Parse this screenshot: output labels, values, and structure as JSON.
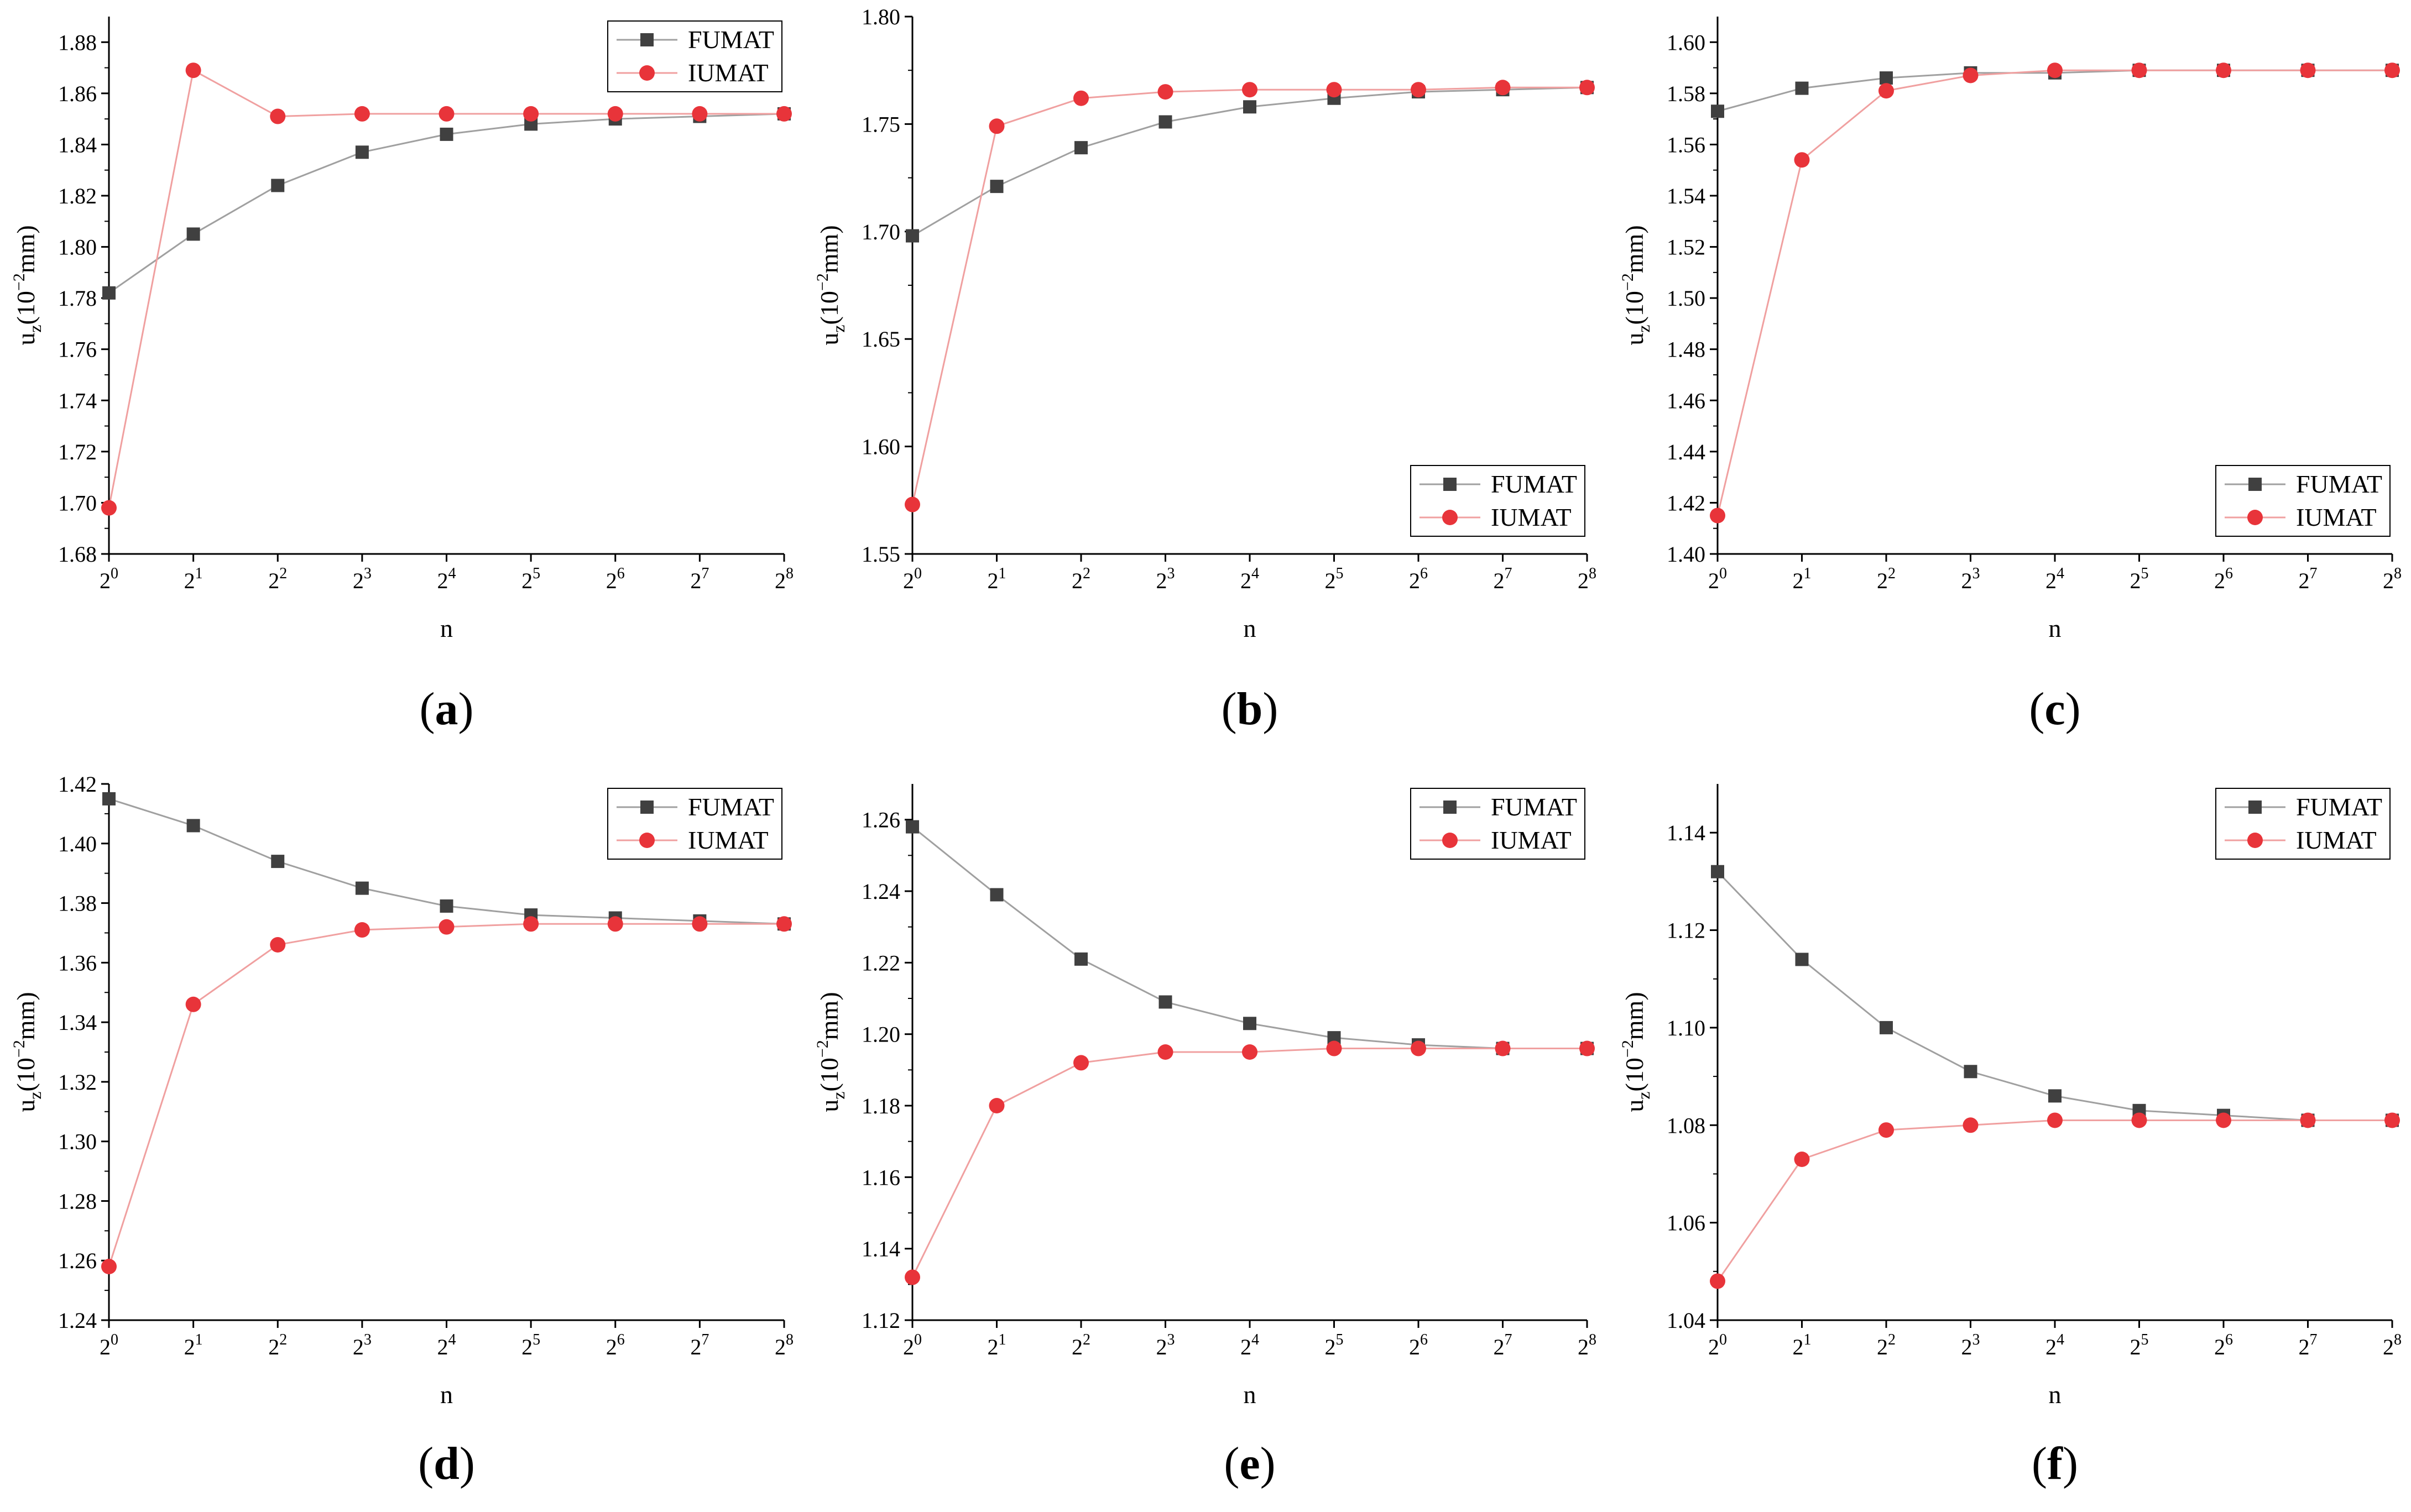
{
  "chart_data": [
    {
      "type": "line",
      "panel_label": "a",
      "title": "",
      "xlabel": "n",
      "ylabel_base": "u",
      "ylabel_sub": "z",
      "ylabel_pre": "(10",
      "ylabel_exp": "−2",
      "ylabel_post": "mm)",
      "x": [
        0,
        1,
        2,
        3,
        4,
        5,
        6,
        7,
        8
      ],
      "x_tick_base": "2",
      "ylim": [
        1.68,
        1.89
      ],
      "y_ticks": [
        "1.68",
        "1.70",
        "1.72",
        "1.74",
        "1.76",
        "1.78",
        "1.80",
        "1.82",
        "1.84",
        "1.86",
        "1.88"
      ],
      "legend_position": "top-right",
      "series": [
        {
          "name": "FUMAT",
          "marker": "square",
          "color": "#404040",
          "line_color": "#a0a0a0",
          "values": [
            1.782,
            1.805,
            1.824,
            1.837,
            1.844,
            1.848,
            1.85,
            1.851,
            1.852
          ]
        },
        {
          "name": "IUMAT",
          "marker": "circle",
          "color": "#e8343a",
          "line_color": "#f0a0a0",
          "values": [
            1.698,
            1.869,
            1.851,
            1.852,
            1.852,
            1.852,
            1.852,
            1.852,
            1.852
          ]
        }
      ]
    },
    {
      "type": "line",
      "panel_label": "b",
      "title": "",
      "xlabel": "n",
      "ylabel_base": "u",
      "ylabel_sub": "z",
      "ylabel_pre": "(10",
      "ylabel_exp": "−2",
      "ylabel_post": "mm)",
      "x": [
        0,
        1,
        2,
        3,
        4,
        5,
        6,
        7,
        8
      ],
      "x_tick_base": "2",
      "ylim": [
        1.55,
        1.8
      ],
      "y_ticks": [
        "1.55",
        "1.60",
        "1.65",
        "1.70",
        "1.75",
        "1.80"
      ],
      "legend_position": "bottom-right",
      "series": [
        {
          "name": "FUMAT",
          "marker": "square",
          "color": "#404040",
          "line_color": "#a0a0a0",
          "values": [
            1.698,
            1.721,
            1.739,
            1.751,
            1.758,
            1.762,
            1.765,
            1.766,
            1.767
          ]
        },
        {
          "name": "IUMAT",
          "marker": "circle",
          "color": "#e8343a",
          "line_color": "#f0a0a0",
          "values": [
            1.573,
            1.749,
            1.762,
            1.765,
            1.766,
            1.766,
            1.766,
            1.767,
            1.767
          ]
        }
      ]
    },
    {
      "type": "line",
      "panel_label": "c",
      "title": "",
      "xlabel": "n",
      "ylabel_base": "u",
      "ylabel_sub": "z",
      "ylabel_pre": "(10",
      "ylabel_exp": "−2",
      "ylabel_post": "mm)",
      "x": [
        0,
        1,
        2,
        3,
        4,
        5,
        6,
        7,
        8
      ],
      "x_tick_base": "2",
      "ylim": [
        1.4,
        1.61
      ],
      "y_ticks": [
        "1.40",
        "1.42",
        "1.44",
        "1.46",
        "1.48",
        "1.50",
        "1.52",
        "1.54",
        "1.56",
        "1.58",
        "1.60"
      ],
      "legend_position": "bottom-right",
      "series": [
        {
          "name": "FUMAT",
          "marker": "square",
          "color": "#404040",
          "line_color": "#a0a0a0",
          "values": [
            1.573,
            1.582,
            1.586,
            1.588,
            1.588,
            1.589,
            1.589,
            1.589,
            1.589
          ]
        },
        {
          "name": "IUMAT",
          "marker": "circle",
          "color": "#e8343a",
          "line_color": "#f0a0a0",
          "values": [
            1.415,
            1.554,
            1.581,
            1.587,
            1.589,
            1.589,
            1.589,
            1.589,
            1.589
          ]
        }
      ]
    },
    {
      "type": "line",
      "panel_label": "d",
      "title": "",
      "xlabel": "n",
      "ylabel_base": "u",
      "ylabel_sub": "z",
      "ylabel_pre": "(10",
      "ylabel_exp": "−2",
      "ylabel_post": "mm)",
      "x": [
        0,
        1,
        2,
        3,
        4,
        5,
        6,
        7,
        8
      ],
      "x_tick_base": "2",
      "ylim": [
        1.24,
        1.42
      ],
      "y_ticks": [
        "1.24",
        "1.26",
        "1.28",
        "1.30",
        "1.32",
        "1.34",
        "1.36",
        "1.38",
        "1.40",
        "1.42"
      ],
      "legend_position": "top-right",
      "series": [
        {
          "name": "FUMAT",
          "marker": "square",
          "color": "#404040",
          "line_color": "#a0a0a0",
          "values": [
            1.415,
            1.406,
            1.394,
            1.385,
            1.379,
            1.376,
            1.375,
            1.374,
            1.373
          ]
        },
        {
          "name": "IUMAT",
          "marker": "circle",
          "color": "#e8343a",
          "line_color": "#f0a0a0",
          "values": [
            1.258,
            1.346,
            1.366,
            1.371,
            1.372,
            1.373,
            1.373,
            1.373,
            1.373
          ]
        }
      ]
    },
    {
      "type": "line",
      "panel_label": "e",
      "title": "",
      "xlabel": "n",
      "ylabel_base": "u",
      "ylabel_sub": "z",
      "ylabel_pre": "(10",
      "ylabel_exp": "−2",
      "ylabel_post": "mm)",
      "x": [
        0,
        1,
        2,
        3,
        4,
        5,
        6,
        7,
        8
      ],
      "x_tick_base": "2",
      "ylim": [
        1.12,
        1.27
      ],
      "y_ticks": [
        "1.12",
        "1.14",
        "1.16",
        "1.18",
        "1.20",
        "1.22",
        "1.24",
        "1.26"
      ],
      "legend_position": "top-right",
      "series": [
        {
          "name": "FUMAT",
          "marker": "square",
          "color": "#404040",
          "line_color": "#a0a0a0",
          "values": [
            1.258,
            1.239,
            1.221,
            1.209,
            1.203,
            1.199,
            1.197,
            1.196,
            1.196
          ]
        },
        {
          "name": "IUMAT",
          "marker": "circle",
          "color": "#e8343a",
          "line_color": "#f0a0a0",
          "values": [
            1.132,
            1.18,
            1.192,
            1.195,
            1.195,
            1.196,
            1.196,
            1.196,
            1.196
          ]
        }
      ]
    },
    {
      "type": "line",
      "panel_label": "f",
      "title": "",
      "xlabel": "n",
      "ylabel_base": "u",
      "ylabel_sub": "z",
      "ylabel_pre": "(10",
      "ylabel_exp": "−2",
      "ylabel_post": "mm)",
      "x": [
        0,
        1,
        2,
        3,
        4,
        5,
        6,
        7,
        8
      ],
      "x_tick_base": "2",
      "ylim": [
        1.04,
        1.15
      ],
      "y_ticks": [
        "1.04",
        "1.06",
        "1.08",
        "1.10",
        "1.12",
        "1.14"
      ],
      "legend_position": "top-right",
      "series": [
        {
          "name": "FUMAT",
          "marker": "square",
          "color": "#404040",
          "line_color": "#a0a0a0",
          "values": [
            1.132,
            1.114,
            1.1,
            1.091,
            1.086,
            1.083,
            1.082,
            1.081,
            1.081
          ]
        },
        {
          "name": "IUMAT",
          "marker": "circle",
          "color": "#e8343a",
          "line_color": "#f0a0a0",
          "values": [
            1.048,
            1.073,
            1.079,
            1.08,
            1.081,
            1.081,
            1.081,
            1.081,
            1.081
          ]
        }
      ]
    }
  ]
}
